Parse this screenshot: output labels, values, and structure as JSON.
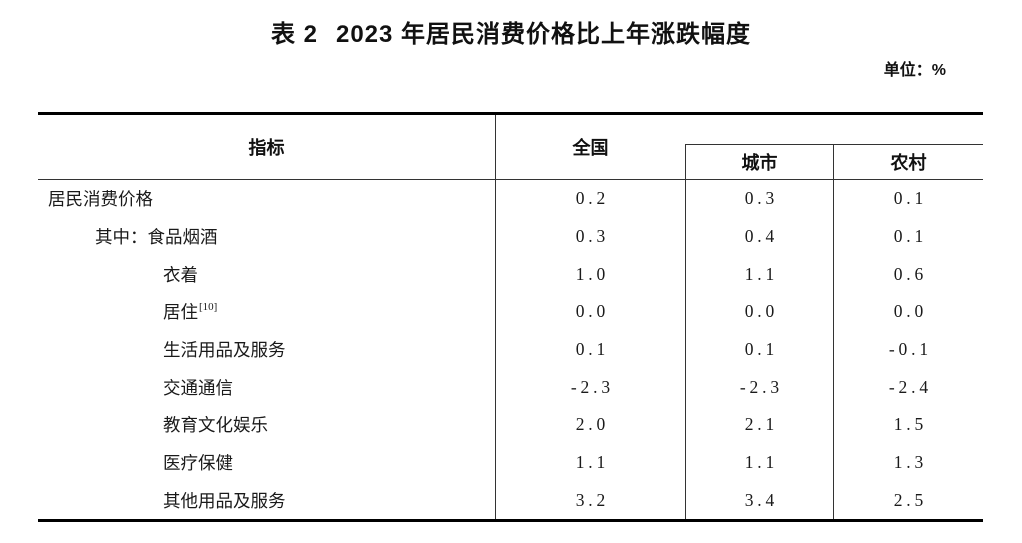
{
  "caption": {
    "label": "表 2",
    "title": "2023 年居民消费价格比上年涨跌幅度"
  },
  "unit_note": "单位：%",
  "table": {
    "columns": {
      "indicator": "指标",
      "national": "全国",
      "urban": "城市",
      "rural": "农村"
    },
    "rows": [
      {
        "label": "居民消费价格",
        "indent": 0,
        "sup": "",
        "national": "0.2",
        "urban": "0.3",
        "rural": "0.1"
      },
      {
        "label": "其中：食品烟酒",
        "indent": 1,
        "sup": "",
        "national": "0.3",
        "urban": "0.4",
        "rural": "0.1"
      },
      {
        "label": "衣着",
        "indent": 2,
        "sup": "",
        "national": "1.0",
        "urban": "1.1",
        "rural": "0.6"
      },
      {
        "label": "居住",
        "indent": 2,
        "sup": "[10]",
        "national": "0.0",
        "urban": "0.0",
        "rural": "0.0"
      },
      {
        "label": "生活用品及服务",
        "indent": 2,
        "sup": "",
        "national": "0.1",
        "urban": "0.1",
        "rural": "-0.1"
      },
      {
        "label": "交通通信",
        "indent": 2,
        "sup": "",
        "national": "-2.3",
        "urban": "-2.3",
        "rural": "-2.4"
      },
      {
        "label": "教育文化娱乐",
        "indent": 2,
        "sup": "",
        "national": "2.0",
        "urban": "2.1",
        "rural": "1.5"
      },
      {
        "label": "医疗保健",
        "indent": 2,
        "sup": "",
        "national": "1.1",
        "urban": "1.1",
        "rural": "1.3"
      },
      {
        "label": "其他用品及服务",
        "indent": 2,
        "sup": "",
        "national": "3.2",
        "urban": "3.4",
        "rural": "2.5"
      }
    ]
  }
}
